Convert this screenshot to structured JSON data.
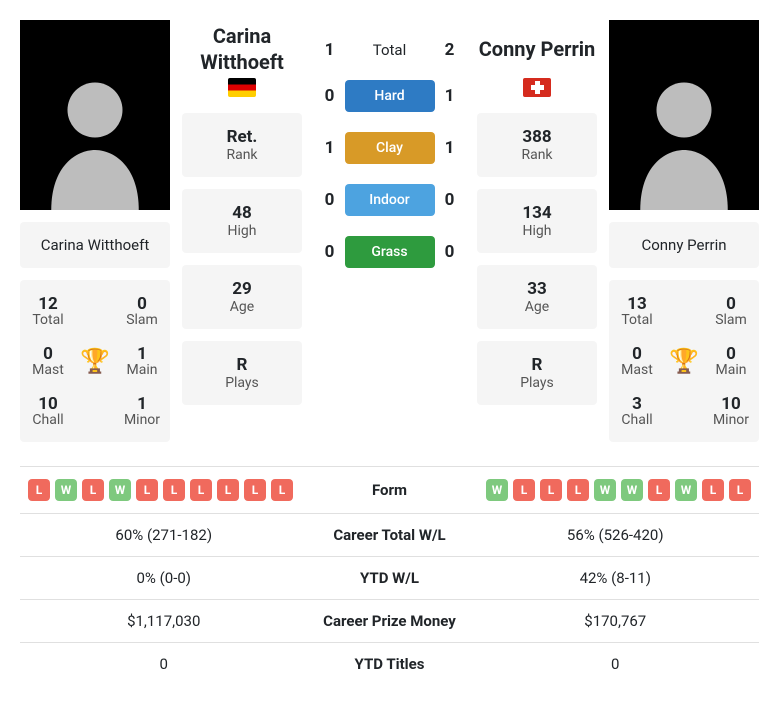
{
  "labels": {
    "total": "Total",
    "slam": "Slam",
    "mast": "Mast",
    "main": "Main",
    "chall": "Chall",
    "minor": "Minor",
    "rank": "Rank",
    "high": "High",
    "age": "Age",
    "plays": "Plays",
    "ret": "Ret.",
    "h2h_total": "Total",
    "hard": "Hard",
    "clay": "Clay",
    "indoor": "Indoor",
    "grass": "Grass",
    "form": "Form",
    "career_wl": "Career Total W/L",
    "ytd_wl": "YTD W/L",
    "career_money": "Career Prize Money",
    "ytd_titles": "YTD Titles"
  },
  "colors": {
    "hard": "#2e7bc4",
    "clay": "#d89a27",
    "indoor": "#4da3e0",
    "grass": "#2e9b3e",
    "win": "#7ec97e",
    "loss": "#f06a5d",
    "trophy": "#2e7bc4"
  },
  "p1": {
    "name": "Carina Witthoeft",
    "country": "de",
    "titles": {
      "total": "12",
      "slam": "0",
      "mast": "0",
      "main": "1",
      "chall": "10",
      "minor": "1"
    },
    "rank": "Ret.",
    "high": "48",
    "age": "29",
    "plays": "R"
  },
  "p2": {
    "name": "Conny Perrin",
    "country": "ch",
    "titles": {
      "total": "13",
      "slam": "0",
      "mast": "0",
      "main": "0",
      "chall": "3",
      "minor": "10"
    },
    "rank": "388",
    "high": "134",
    "age": "33",
    "plays": "R"
  },
  "h2h": {
    "total": {
      "p1": "1",
      "p2": "2"
    },
    "hard": {
      "p1": "0",
      "p2": "1"
    },
    "clay": {
      "p1": "1",
      "p2": "1"
    },
    "indoor": {
      "p1": "0",
      "p2": "0"
    },
    "grass": {
      "p1": "0",
      "p2": "0"
    }
  },
  "form": {
    "p1": [
      "L",
      "W",
      "L",
      "W",
      "L",
      "L",
      "L",
      "L",
      "L",
      "L"
    ],
    "p2": [
      "W",
      "L",
      "L",
      "L",
      "W",
      "W",
      "L",
      "W",
      "L",
      "L"
    ]
  },
  "stats": {
    "career_wl": {
      "p1": "60% (271-182)",
      "p2": "56% (526-420)"
    },
    "ytd_wl": {
      "p1": "0% (0-0)",
      "p2": "42% (8-11)"
    },
    "career_money": {
      "p1": "$1,117,030",
      "p2": "$170,767"
    },
    "ytd_titles": {
      "p1": "0",
      "p2": "0"
    }
  }
}
